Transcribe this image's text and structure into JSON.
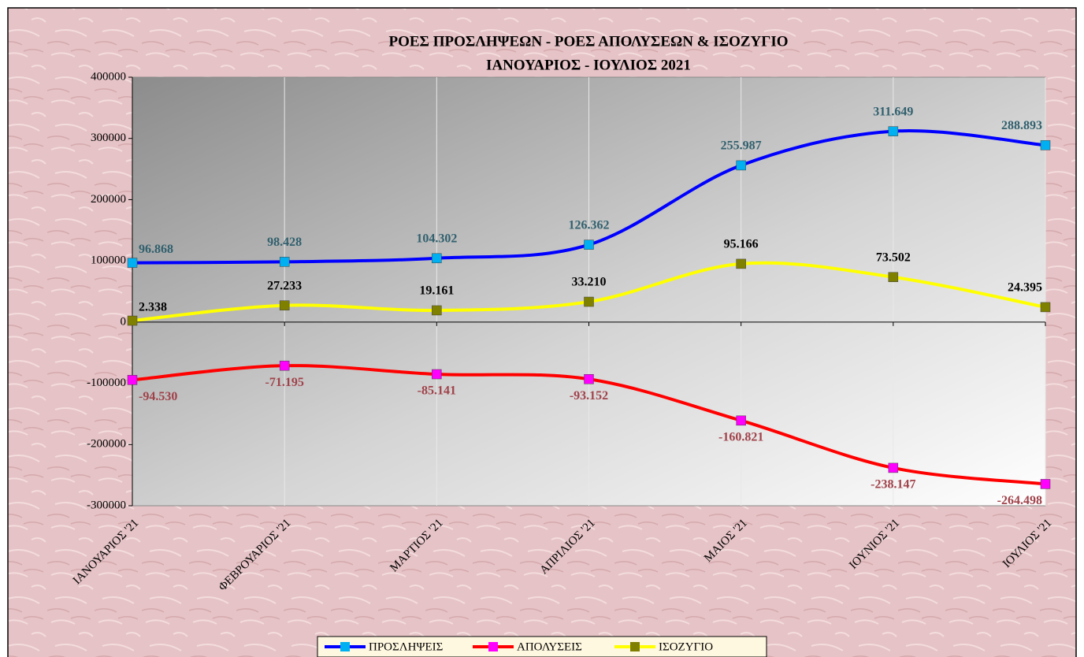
{
  "chart_data": {
    "type": "line",
    "title": "ΡΟΕΣ ΠΡΟΣΛΗΨΕΩΝ -  ΡΟΕΣ ΑΠΟΛΥΣΕΩΝ  & ΙΣΟΖΥΓΙΟ",
    "subtitle": "ΙΑΝΟΥΑΡΙΟΣ  -  ΙΟΥΛΙΟΣ  2021",
    "categories": [
      "ΙΑΝΟΥΑΡΙΟΣ '21",
      "ΦΕΒΡΟΥΑΡΙΟΣ '21",
      "ΜΑΡΤΙΟΣ '21",
      "ΑΠΡΙΛΙΟΣ '21",
      "ΜΑΙΟΣ '21",
      "ΙΟΥΝΙΟΣ '21",
      "ΙΟΥΛΙΟΣ '21"
    ],
    "series": [
      {
        "name": "ΠΡΟΣΛΗΨΕΙΣ",
        "color": "#0000ff",
        "marker_color": "#00b0f0",
        "label_color": "#31606e",
        "values": [
          96868,
          98428,
          104302,
          126362,
          255987,
          311649,
          288893
        ],
        "value_labels": [
          "96.868",
          "98.428",
          "104.302",
          "126.362",
          "255.987",
          "311.649",
          "288.893"
        ]
      },
      {
        "name": "ΑΠΟΛΥΣΕΙΣ",
        "color": "#ff0000",
        "marker_color": "#ff00ff",
        "label_color": "#a0424a",
        "values": [
          -94530,
          -71195,
          -85141,
          -93152,
          -160821,
          -238147,
          -264498
        ],
        "value_labels": [
          "-94.530",
          "-71.195",
          "-85.141",
          "-93.152",
          "-160.821",
          "-238.147",
          "-264.498"
        ]
      },
      {
        "name": "ΙΣΟΖΥΓΙΟ",
        "color": "#ffff00",
        "marker_color": "#808000",
        "label_color": "#000000",
        "values": [
          2338,
          27233,
          19161,
          33210,
          95166,
          73502,
          24395
        ],
        "value_labels": [
          "2.338",
          "27.233",
          "19.161",
          "33.210",
          "95.166",
          "73.502",
          "24.395"
        ]
      }
    ],
    "ylim": [
      -300000,
      400000
    ],
    "yticks": [
      -300000,
      -200000,
      -100000,
      0,
      100000,
      200000,
      300000,
      400000
    ],
    "smooth": true,
    "legend": "bottom"
  }
}
